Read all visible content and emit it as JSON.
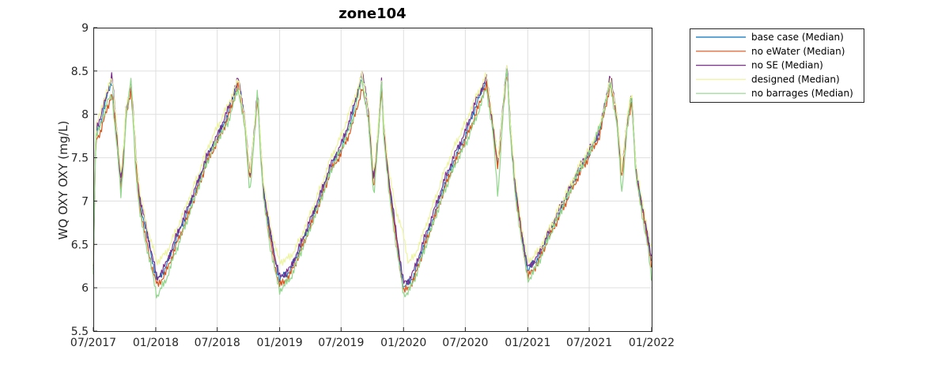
{
  "chart_data": {
    "type": "line",
    "title": "zone104",
    "xlabel": "",
    "ylabel": "WQ OXY OXY (mg/L)",
    "xlim": [
      "2017-07-01",
      "2022-01-01"
    ],
    "ylim": [
      5.5,
      9
    ],
    "x_ticks": [
      "07/2017",
      "01/2018",
      "07/2018",
      "01/2019",
      "07/2019",
      "01/2020",
      "07/2020",
      "01/2021",
      "07/2021",
      "01/2022"
    ],
    "y_ticks": [
      "5.5",
      "6",
      "6.5",
      "7",
      "7.5",
      "8",
      "8.5",
      "9"
    ],
    "grid": true,
    "legend_position": "outside-top-right",
    "x": [
      "2017-07-01",
      "2017-07-08",
      "2017-07-22",
      "2017-08-10",
      "2017-08-25",
      "2017-09-10",
      "2017-09-20",
      "2017-09-28",
      "2017-10-05",
      "2017-10-20",
      "2017-10-28",
      "2017-11-03",
      "2017-11-15",
      "2017-12-01",
      "2017-12-20",
      "2018-01-05",
      "2018-02-01",
      "2018-03-01",
      "2018-04-01",
      "2018-05-01",
      "2018-06-01",
      "2018-07-01",
      "2018-08-01",
      "2018-09-01",
      "2018-09-20",
      "2018-10-05",
      "2018-10-20",
      "2018-10-28",
      "2018-11-03",
      "2018-11-15",
      "2018-12-01",
      "2018-12-20",
      "2019-01-01",
      "2019-02-01",
      "2019-03-01",
      "2019-04-01",
      "2019-05-01",
      "2019-06-01",
      "2019-07-01",
      "2019-08-01",
      "2019-09-01",
      "2019-09-20",
      "2019-10-05",
      "2019-10-20",
      "2019-10-28",
      "2019-11-03",
      "2019-11-20",
      "2019-12-10",
      "2020-01-01",
      "2020-01-15",
      "2020-02-01",
      "2020-03-01",
      "2020-04-01",
      "2020-05-01",
      "2020-06-01",
      "2020-07-01",
      "2020-08-01",
      "2020-09-01",
      "2020-09-20",
      "2020-10-05",
      "2020-10-20",
      "2020-11-01",
      "2020-11-10",
      "2020-11-25",
      "2020-12-15",
      "2021-01-01",
      "2021-02-01",
      "2021-03-01",
      "2021-04-01",
      "2021-05-01",
      "2021-06-01",
      "2021-07-01",
      "2021-08-01",
      "2021-09-01",
      "2021-09-20",
      "2021-10-05",
      "2021-10-20",
      "2021-11-03",
      "2021-11-15",
      "2021-12-01",
      "2021-12-20",
      "2022-01-01"
    ],
    "series": [
      {
        "name": "base case (Median)",
        "color": "#0072BD",
        "width": 1,
        "values": [
          6.2,
          7.8,
          7.9,
          8.2,
          8.4,
          7.7,
          7.2,
          7.5,
          8.0,
          8.35,
          7.9,
          7.5,
          7.0,
          6.7,
          6.35,
          6.08,
          6.25,
          6.55,
          6.85,
          7.15,
          7.5,
          7.72,
          8.0,
          8.4,
          7.95,
          7.25,
          7.9,
          8.25,
          7.8,
          7.1,
          6.7,
          6.3,
          6.1,
          6.2,
          6.45,
          6.75,
          7.05,
          7.4,
          7.6,
          7.95,
          8.45,
          8.05,
          7.2,
          7.9,
          8.35,
          7.9,
          7.2,
          6.6,
          6.0,
          6.05,
          6.15,
          6.5,
          6.85,
          7.2,
          7.5,
          7.75,
          8.1,
          8.4,
          7.9,
          7.4,
          8.1,
          8.55,
          7.9,
          7.15,
          6.6,
          6.2,
          6.35,
          6.6,
          6.85,
          7.1,
          7.35,
          7.55,
          7.8,
          8.4,
          8.0,
          7.3,
          7.9,
          8.2,
          7.4,
          7.0,
          6.6,
          6.3
        ]
      },
      {
        "name": "no eWater (Median)",
        "color": "#D95319",
        "width": 1.2,
        "values": [
          6.2,
          7.7,
          7.8,
          8.05,
          8.25,
          7.6,
          7.15,
          7.45,
          7.95,
          8.3,
          7.85,
          7.45,
          6.95,
          6.6,
          6.25,
          6.02,
          6.18,
          6.48,
          6.78,
          7.1,
          7.45,
          7.68,
          7.95,
          8.35,
          7.9,
          7.2,
          7.85,
          8.2,
          7.75,
          7.05,
          6.62,
          6.22,
          6.02,
          6.15,
          6.4,
          6.7,
          7.0,
          7.35,
          7.55,
          7.85,
          8.3,
          7.95,
          7.1,
          7.85,
          8.3,
          7.85,
          7.15,
          6.55,
          5.95,
          6.0,
          6.1,
          6.45,
          6.8,
          7.15,
          7.45,
          7.7,
          8.0,
          8.35,
          7.85,
          7.35,
          8.05,
          8.5,
          7.85,
          7.1,
          6.55,
          6.12,
          6.3,
          6.55,
          6.8,
          7.05,
          7.3,
          7.52,
          7.75,
          8.35,
          7.95,
          7.25,
          7.85,
          8.15,
          7.35,
          6.95,
          6.55,
          6.25
        ]
      },
      {
        "name": "no SE (Median)",
        "color": "#7E2F8E",
        "width": 1.2,
        "values": [
          6.2,
          7.85,
          7.95,
          8.25,
          8.45,
          7.75,
          7.25,
          7.55,
          8.05,
          8.38,
          7.95,
          7.55,
          7.05,
          6.75,
          6.4,
          6.1,
          6.28,
          6.58,
          6.88,
          7.18,
          7.52,
          7.75,
          8.05,
          8.42,
          7.98,
          7.28,
          7.92,
          8.28,
          7.82,
          7.12,
          6.72,
          6.32,
          6.12,
          6.22,
          6.48,
          6.78,
          7.08,
          7.42,
          7.65,
          8.0,
          8.48,
          8.08,
          7.22,
          7.92,
          8.38,
          7.92,
          7.22,
          6.65,
          6.05,
          6.08,
          6.2,
          6.55,
          6.9,
          7.25,
          7.55,
          7.8,
          8.15,
          8.42,
          7.92,
          7.42,
          8.12,
          8.58,
          7.92,
          7.18,
          6.62,
          6.22,
          6.38,
          6.62,
          6.88,
          7.12,
          7.38,
          7.58,
          7.82,
          8.45,
          8.02,
          7.32,
          7.92,
          8.22,
          7.42,
          7.02,
          6.62,
          6.32
        ]
      },
      {
        "name": "designed (Median)",
        "color": "#EDF5A0",
        "width": 1.2,
        "values": [
          6.3,
          7.9,
          8.0,
          8.3,
          8.4,
          7.8,
          7.3,
          7.6,
          8.1,
          8.35,
          7.95,
          7.55,
          7.1,
          6.8,
          6.5,
          6.3,
          6.4,
          6.65,
          6.95,
          7.25,
          7.6,
          7.85,
          8.1,
          8.4,
          7.95,
          7.3,
          7.9,
          8.25,
          7.85,
          7.2,
          6.8,
          6.45,
          6.3,
          6.35,
          6.55,
          6.85,
          7.15,
          7.5,
          7.75,
          8.1,
          8.45,
          8.1,
          7.3,
          7.95,
          8.35,
          7.95,
          7.3,
          6.9,
          6.6,
          6.3,
          6.35,
          6.65,
          7.0,
          7.35,
          7.65,
          7.9,
          8.2,
          8.45,
          7.95,
          7.45,
          8.1,
          8.55,
          7.95,
          7.25,
          6.7,
          6.3,
          6.42,
          6.65,
          6.9,
          7.15,
          7.4,
          7.6,
          7.85,
          8.4,
          8.05,
          7.35,
          7.95,
          8.25,
          7.45,
          7.05,
          6.7,
          6.4
        ]
      },
      {
        "name": "no barrages (Median)",
        "color": "#8FD78A",
        "width": 1.2,
        "values": [
          6.15,
          7.75,
          7.85,
          8.15,
          8.2,
          7.6,
          7.05,
          7.4,
          7.95,
          8.4,
          7.8,
          7.35,
          6.85,
          6.55,
          6.2,
          5.9,
          6.1,
          6.42,
          6.75,
          7.1,
          7.45,
          7.7,
          7.9,
          8.3,
          7.85,
          7.1,
          7.8,
          8.3,
          7.7,
          7.0,
          6.55,
          6.15,
          5.97,
          6.1,
          6.38,
          6.68,
          7.0,
          7.35,
          7.6,
          7.9,
          8.4,
          7.9,
          7.05,
          7.8,
          8.4,
          7.8,
          7.05,
          6.5,
          5.92,
          5.95,
          6.08,
          6.42,
          6.78,
          7.12,
          7.42,
          7.65,
          7.95,
          8.3,
          7.8,
          7.05,
          8.0,
          8.58,
          7.8,
          7.05,
          6.52,
          6.08,
          6.28,
          6.55,
          6.82,
          7.08,
          7.35,
          7.55,
          7.85,
          8.35,
          7.9,
          7.1,
          7.8,
          8.25,
          7.3,
          6.9,
          6.5,
          6.05
        ]
      }
    ]
  }
}
